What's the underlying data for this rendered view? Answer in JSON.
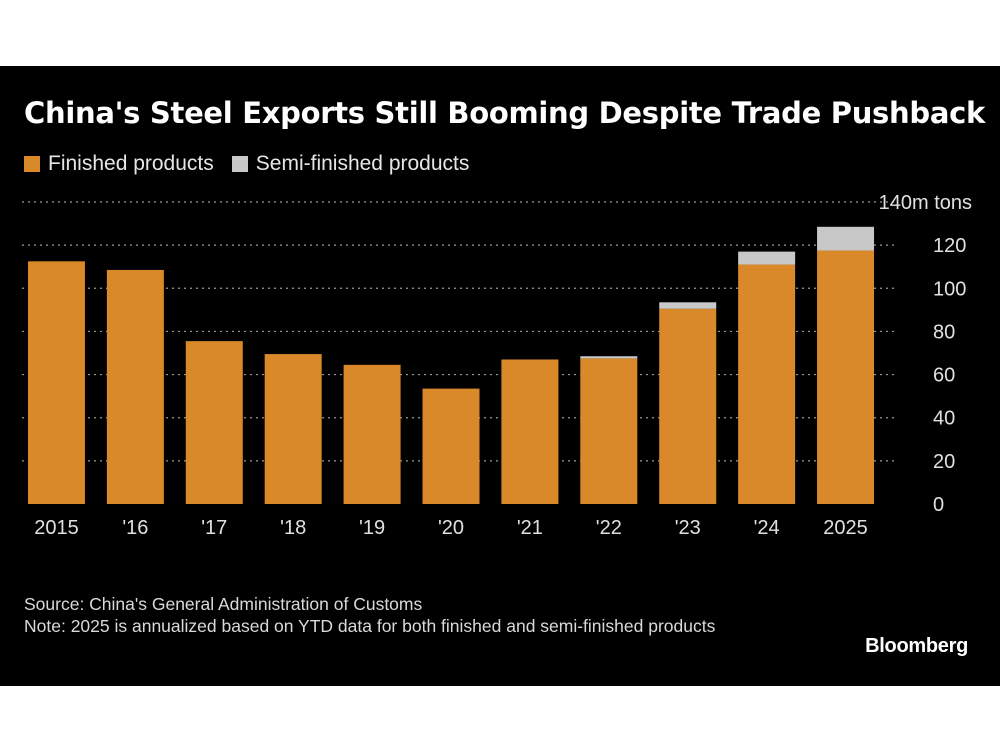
{
  "title": "China's Steel Exports Still Booming Despite Trade Pushback",
  "legend": [
    {
      "label": "Finished products",
      "color": "#d9892a"
    },
    {
      "label": "Semi-finished products",
      "color": "#c8c8c8"
    }
  ],
  "footer": {
    "source": "Source: China's General Administration of Customs",
    "note": "Note: 2025 is annualized based on YTD data for both finished and semi-finished products"
  },
  "brand": "Bloomberg",
  "chart_data": {
    "type": "bar",
    "stacked": true,
    "categories": [
      "2015",
      "'16",
      "'17",
      "'18",
      "'19",
      "'20",
      "'21",
      "'22",
      "'23",
      "'24",
      "2025"
    ],
    "series": [
      {
        "name": "Finished products",
        "color": "#d9892a",
        "values": [
          112.5,
          108.5,
          75.5,
          69.5,
          64.5,
          53.5,
          67,
          67.5,
          90.5,
          111,
          117.5
        ]
      },
      {
        "name": "Semi-finished products",
        "color": "#c8c8c8",
        "values": [
          0,
          0,
          0,
          0,
          0,
          0,
          0,
          1,
          3,
          6,
          11
        ]
      }
    ],
    "ylim": [
      0,
      140
    ],
    "y_ticks": [
      "0",
      "20",
      "40",
      "60",
      "80",
      "100",
      "120",
      "140m tons"
    ],
    "grid": true,
    "y_axis_position": "right",
    "legend_position": "top-left"
  }
}
